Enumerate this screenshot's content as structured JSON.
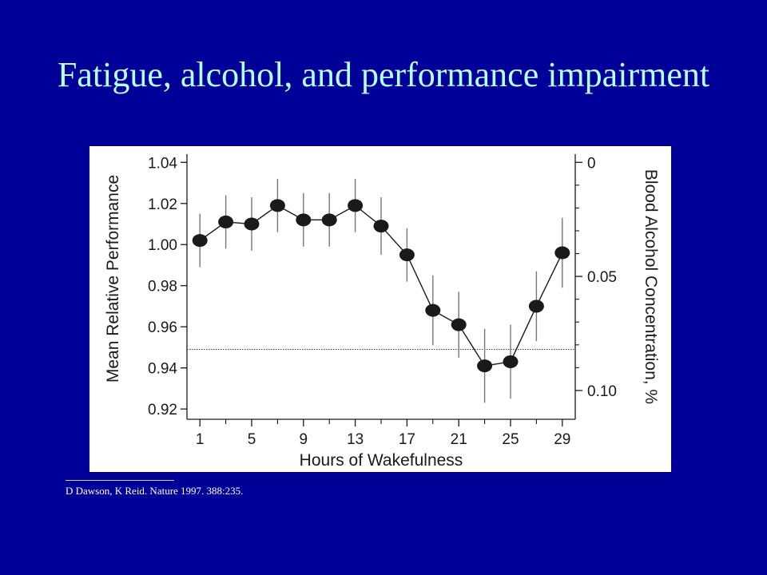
{
  "slide": {
    "title": "Fatigue, alcohol, and performance impairment",
    "citation": "D Dawson, K  Reid. Nature 1997. 388:235."
  },
  "colors": {
    "background": "#000099",
    "title": "#b3ffff",
    "panel": "#ffffff",
    "ink": "#1a1a1a"
  },
  "chart_data": {
    "type": "line",
    "title": "",
    "xlabel": "Hours of Wakefulness",
    "ylabel": "Mean Relative Performance",
    "y2label": "Blood Alcohol Concentration, %",
    "xlim": [
      0,
      30
    ],
    "ylim": [
      0.915,
      1.044
    ],
    "x_ticks_labeled": [
      1,
      5,
      9,
      13,
      17,
      21,
      25,
      29
    ],
    "x_ticks_minor": [
      3,
      7,
      11,
      15,
      19,
      23,
      27
    ],
    "y_ticks": [
      1.04,
      1.02,
      1.0,
      0.98,
      0.96,
      0.94,
      0.92
    ],
    "y_tick_labels": [
      "1.04",
      "1.02",
      "1.00",
      "0.98",
      "0.96",
      "0.94",
      "0.92"
    ],
    "y2_ticks": [
      {
        "bac": "0",
        "performance": 1.04
      },
      {
        "bac": "0.05",
        "performance": 0.9845
      },
      {
        "bac": "0.10",
        "performance": 0.929
      }
    ],
    "y2_minor_performance": [
      1.0289,
      1.0178,
      1.0067,
      0.9956,
      0.9734,
      0.9623,
      0.9512,
      0.9401
    ],
    "reference_line": {
      "y": 0.949,
      "style": "dotted"
    },
    "series": [
      {
        "x": [
          1,
          3,
          5,
          7,
          9,
          11,
          13,
          15,
          17,
          19,
          21,
          23,
          25,
          27,
          29
        ],
        "y": [
          1.002,
          1.011,
          1.01,
          1.019,
          1.012,
          1.012,
          1.019,
          1.009,
          0.995,
          0.968,
          0.961,
          0.941,
          0.943,
          0.97,
          0.996
        ],
        "err": [
          0.013,
          0.013,
          0.013,
          0.013,
          0.013,
          0.013,
          0.013,
          0.014,
          0.013,
          0.017,
          0.016,
          0.018,
          0.018,
          0.017,
          0.017
        ]
      }
    ],
    "grid": false,
    "legend": "none"
  }
}
